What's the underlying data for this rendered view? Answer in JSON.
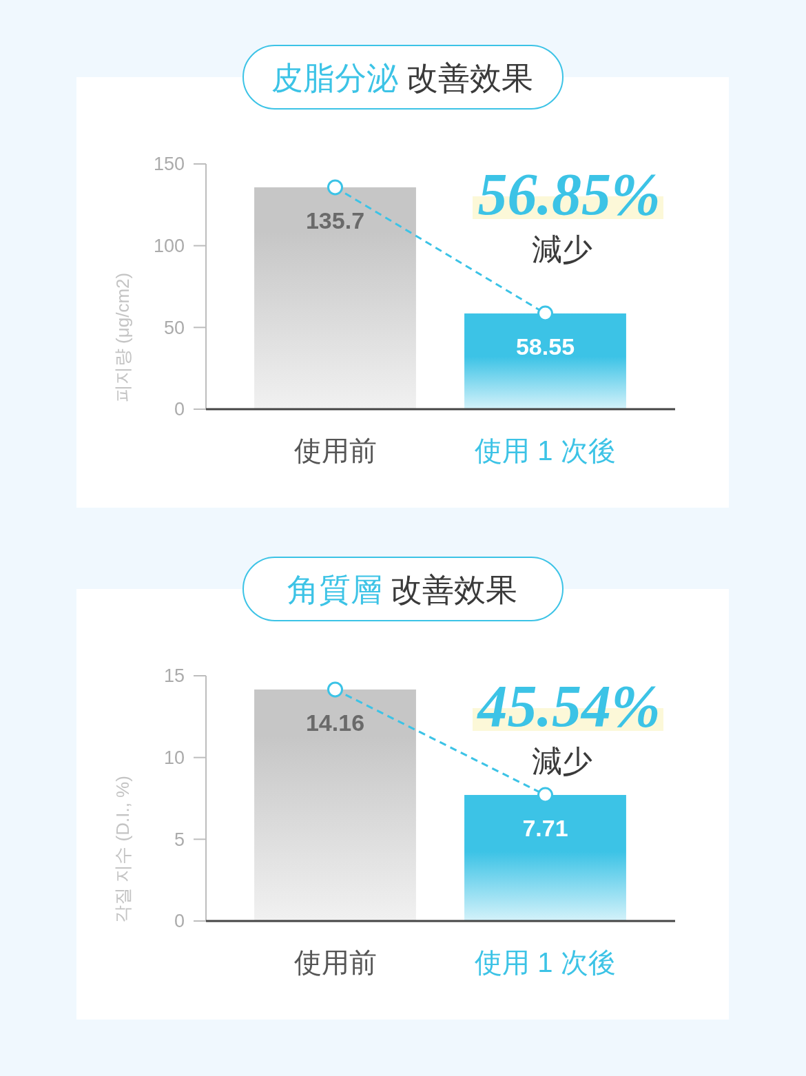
{
  "chart_data": [
    {
      "type": "bar",
      "title": "皮脂分泌 改善效果",
      "ylabel": "피지량 (μg/cm2)",
      "categories": [
        "使用前",
        "使用 1 次後"
      ],
      "series": [
        {
          "colors": [
            "#c6c6c6",
            "#3cc3e6"
          ],
          "values": [
            135.7,
            58.55
          ],
          "value_labels": [
            "135.7",
            "58.55"
          ]
        },
        {
          "type": "line",
          "color": "#3cc3e6",
          "values": [
            135.7,
            58.55
          ]
        }
      ],
      "ylim": [
        0,
        150
      ],
      "yticks": [
        0,
        50,
        100,
        150
      ],
      "marker": "circle",
      "line_style": "dashed",
      "annotations": [
        "56.85%",
        "減少"
      ]
    },
    {
      "type": "bar",
      "title": "角質層 改善效果",
      "ylabel": "각질 지수 (D.I., %)",
      "categories": [
        "使用前",
        "使用 1 次後"
      ],
      "series": [
        {
          "colors": [
            "#c6c6c6",
            "#3cc3e6"
          ],
          "values": [
            14.16,
            7.71
          ],
          "value_labels": [
            "14.16",
            "7.71"
          ]
        },
        {
          "type": "line",
          "color": "#3cc3e6",
          "values": [
            14.16,
            7.71
          ]
        }
      ],
      "ylim": [
        0,
        15
      ],
      "yticks": [
        0,
        5,
        10,
        15
      ],
      "marker": "circle",
      "line_style": "dashed",
      "annotations": [
        "45.54%",
        "減少"
      ]
    }
  ]
}
